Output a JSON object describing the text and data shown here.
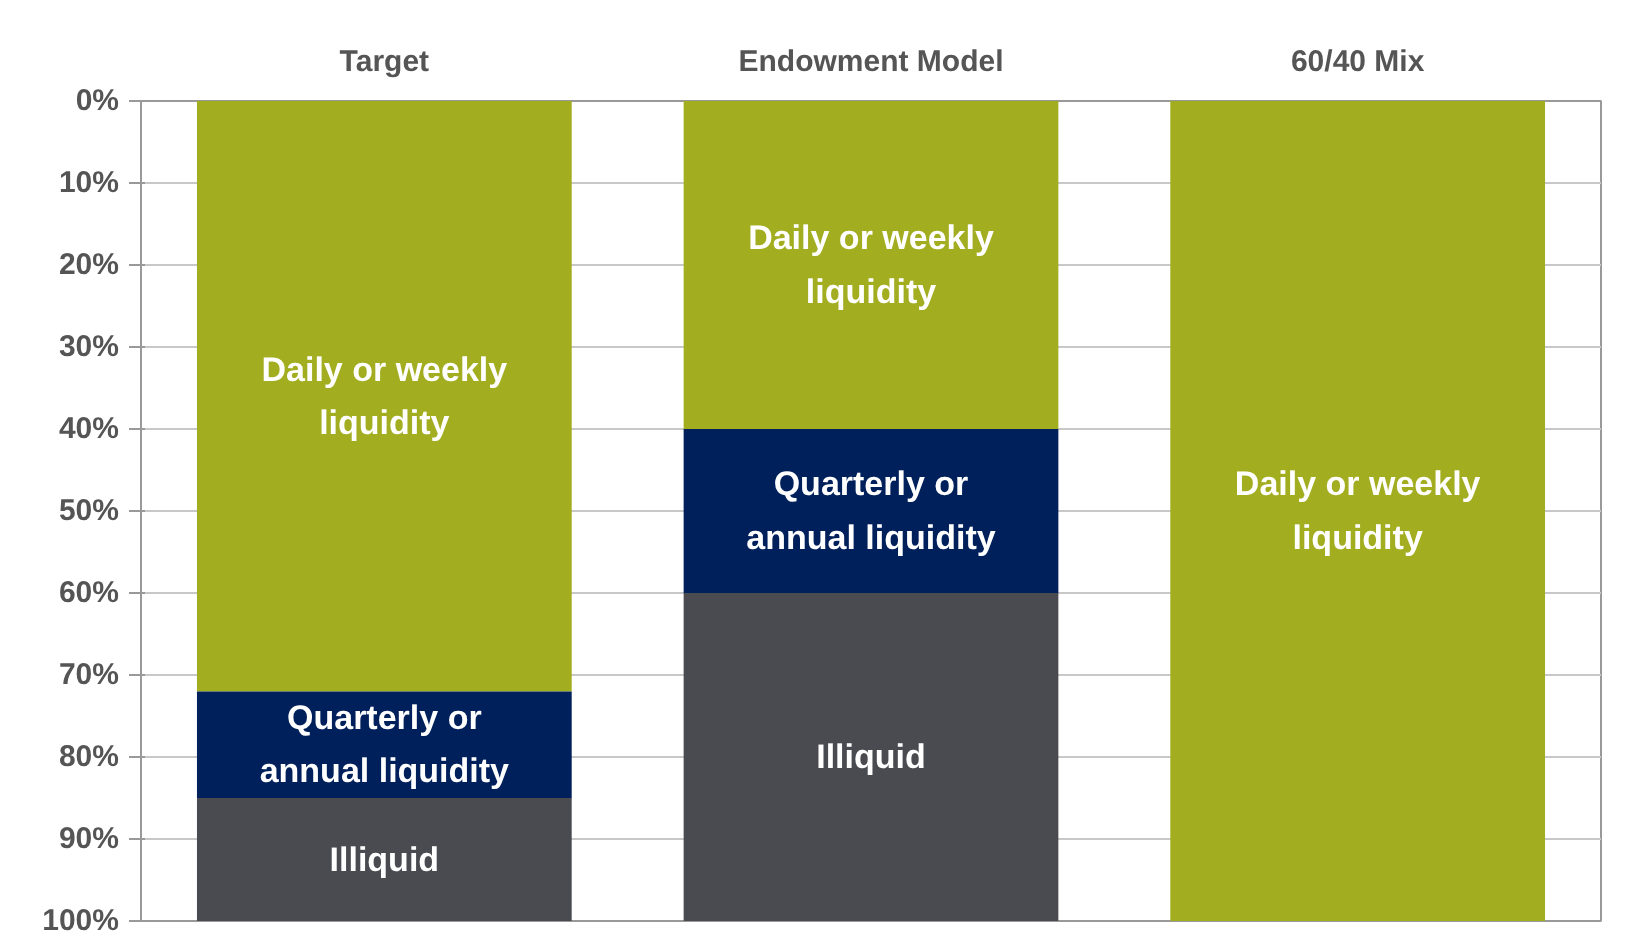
{
  "chart_data": {
    "type": "bar",
    "stacked": true,
    "categories": [
      "Target",
      "Endowment Model",
      "60/40 Mix"
    ],
    "series": [
      {
        "name": "Daily or weekly liquidity",
        "color": "#a2ad1f",
        "values": [
          72,
          40,
          100
        ]
      },
      {
        "name": "Quarterly or annual liquidity",
        "color": "#00205b",
        "values": [
          13,
          20,
          0
        ]
      },
      {
        "name": "Illiquid",
        "color": "#4a4b50",
        "values": [
          15,
          40,
          0
        ]
      }
    ],
    "ylim": [
      100,
      0
    ],
    "yticks": [
      {
        "value": 0,
        "label": "0%"
      },
      {
        "value": 10,
        "label": "10%"
      },
      {
        "value": 20,
        "label": "20%"
      },
      {
        "value": 30,
        "label": "30%"
      },
      {
        "value": 40,
        "label": "40%"
      },
      {
        "value": 50,
        "label": "50%"
      },
      {
        "value": 60,
        "label": "60%"
      },
      {
        "value": 70,
        "label": "70%"
      },
      {
        "value": 80,
        "label": "80%"
      },
      {
        "value": 90,
        "label": "90%"
      },
      {
        "value": 100,
        "label": "100%"
      }
    ],
    "grid": "y",
    "legend": false
  }
}
